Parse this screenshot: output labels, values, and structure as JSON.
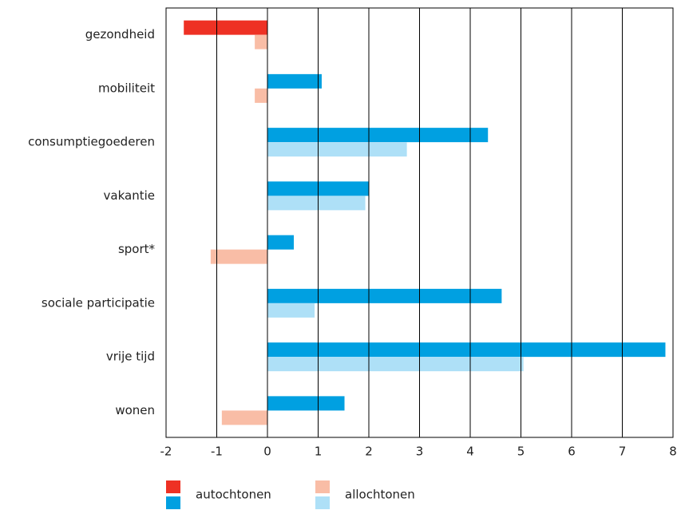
{
  "chart_data": {
    "type": "hbar",
    "categories": [
      "gezondheid",
      "mobiliteit",
      "consumptiegoederen",
      "vakantie",
      "sport*",
      "sociale participatie",
      "vrije tijd",
      "wonen"
    ],
    "series": [
      {
        "name": "autochtonen",
        "color": "#00a0e1",
        "negative_color": "#ee3124",
        "values": [
          -1.65,
          1.07,
          4.35,
          2.0,
          0.52,
          4.62,
          7.85,
          1.52
        ]
      },
      {
        "name": "allochtonen",
        "color": "#aee0f7",
        "negative_color": "#f9bda6",
        "values": [
          -0.25,
          -0.25,
          2.75,
          1.93,
          -1.12,
          0.93,
          5.05,
          -0.9
        ]
      }
    ],
    "xlim": [
      -2,
      8
    ],
    "xticks": [
      -2,
      -1,
      0,
      1,
      2,
      3,
      4,
      5,
      6,
      7,
      8
    ],
    "grid": true
  }
}
